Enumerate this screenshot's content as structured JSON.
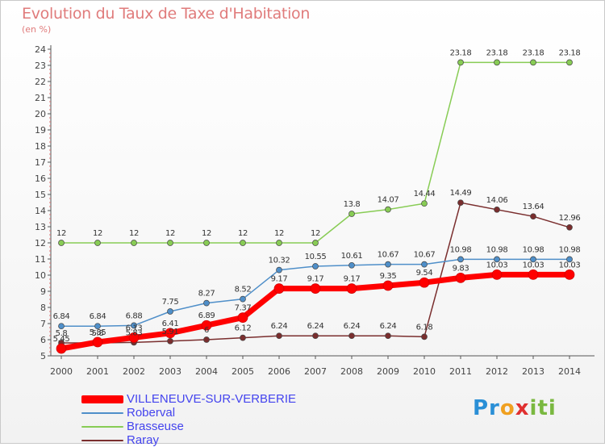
{
  "chart_data": {
    "type": "line",
    "title": "Evolution du Taux de Taxe d'Habitation",
    "subtitle": "(en %)",
    "x": [
      "2000",
      "2001",
      "2002",
      "2003",
      "2004",
      "2005",
      "2006",
      "2007",
      "2008",
      "2009",
      "2010",
      "2011",
      "2012",
      "2013",
      "2014"
    ],
    "ylim": [
      5,
      24
    ],
    "yticks": [
      5,
      6,
      7,
      8,
      9,
      10,
      11,
      12,
      13,
      14,
      15,
      16,
      17,
      18,
      19,
      20,
      21,
      22,
      23,
      24
    ],
    "grid": false,
    "legend_position": "bottom-left",
    "series": [
      {
        "name": "VILLENEUVE-SUR-VERBERIE",
        "color": "#ff0000",
        "values": [
          5.45,
          5.85,
          6.13,
          6.41,
          6.89,
          7.37,
          9.17,
          9.17,
          9.17,
          9.35,
          9.54,
          9.83,
          10.03,
          10.03,
          10.03
        ],
        "labels": [
          "5.45",
          "5.85",
          "6.13",
          "6.41",
          "6.89",
          "7.37",
          "9.17",
          "9.17",
          "9.17",
          "9.35",
          "9.54",
          "9.83",
          "10.03",
          "10.03",
          "10.03"
        ]
      },
      {
        "name": "Roberval",
        "color": "#4f8fc9",
        "values": [
          6.84,
          6.84,
          6.88,
          7.75,
          8.27,
          8.52,
          10.32,
          10.55,
          10.61,
          10.67,
          10.67,
          10.98,
          10.98,
          10.98,
          10.98
        ],
        "labels": [
          "6.84",
          "6.84",
          "6.88",
          "7.75",
          "8.27",
          "8.52",
          "10.32",
          "10.55",
          "10.61",
          "10.67",
          "10.67",
          "10.98",
          "10.98",
          "10.98",
          "10.98"
        ]
      },
      {
        "name": "Brasseuse",
        "color": "#88cc55",
        "values": [
          12,
          12,
          12,
          12,
          12,
          12,
          12,
          12,
          13.8,
          14.07,
          14.44,
          23.18,
          23.18,
          23.18,
          23.18
        ],
        "labels": [
          "12",
          "12",
          "12",
          "12",
          "12",
          "12",
          "12",
          "12",
          "13.8",
          "14.07",
          "14.44",
          "23.18",
          "23.18",
          "23.18",
          "23.18"
        ]
      },
      {
        "name": "Raray",
        "color": "#7a2e2e",
        "values": [
          5.8,
          5.8,
          5.83,
          5.91,
          6,
          6.12,
          6.24,
          6.24,
          6.24,
          6.24,
          6.18,
          14.49,
          14.06,
          13.64,
          12.96
        ],
        "labels": [
          "5.8",
          "5.8",
          "5.83",
          "5.91",
          "6",
          "6.12",
          "6.24",
          "6.24",
          "6.24",
          "6.24",
          "6.18",
          "14.49",
          "14.06",
          "13.64",
          "12.96"
        ]
      }
    ]
  },
  "logo": {
    "text": "Proxiti",
    "parts": [
      "Pr",
      "o",
      "x",
      "iti"
    ]
  }
}
